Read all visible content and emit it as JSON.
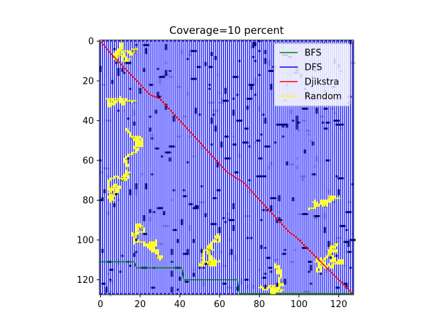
{
  "chart_data": {
    "type": "heatmap",
    "title": "Coverage=10 percent",
    "xlabel": "",
    "ylabel": "",
    "grid_size": 128,
    "xlim": [
      0,
      128
    ],
    "ylim": [
      128,
      0
    ],
    "x_ticks": [
      0,
      20,
      40,
      60,
      80,
      100,
      120
    ],
    "y_ticks": [
      0,
      20,
      40,
      60,
      80,
      100,
      120
    ],
    "obstacle_coverage_percent": 10,
    "legend_position": "top-right",
    "series": [
      {
        "name": "BFS",
        "color": "#008000",
        "points": [
          [
            0,
            111
          ],
          [
            17,
            111
          ],
          [
            18,
            114
          ],
          [
            41,
            114
          ],
          [
            42,
            120
          ],
          [
            69,
            120
          ],
          [
            70,
            127
          ],
          [
            127,
            127
          ]
        ]
      },
      {
        "name": "DFS",
        "color": "#0000ff",
        "style": "serpentine",
        "x_range": [
          0,
          127
        ],
        "y_range": [
          0,
          127
        ],
        "column_step": 1
      },
      {
        "name": "Djikstra",
        "color": "#ff0000",
        "points": [
          [
            0,
            0
          ],
          [
            5,
            6
          ],
          [
            25,
            27
          ],
          [
            30,
            29
          ],
          [
            62,
            64
          ],
          [
            64,
            66
          ],
          [
            67,
            68
          ],
          [
            72,
            71
          ],
          [
            95,
            96
          ],
          [
            98,
            98
          ],
          [
            127,
            127
          ]
        ]
      },
      {
        "name": "Random",
        "color": "#ffff00",
        "style": "random-walk",
        "clusters": [
          {
            "center": [
              10,
              5
            ],
            "size": 120
          },
          {
            "center": [
              5,
              80
            ],
            "size": 140
          },
          {
            "center": [
              12,
              60
            ],
            "size": 120
          },
          {
            "center": [
              30,
              108
            ],
            "size": 180
          },
          {
            "center": [
              60,
              110
            ],
            "size": 160
          },
          {
            "center": [
              90,
              115
            ],
            "size": 140
          },
          {
            "center": [
              115,
              105
            ],
            "size": 160
          },
          {
            "center": [
              105,
              85
            ],
            "size": 120
          },
          {
            "center": [
              18,
              30
            ],
            "size": 70
          }
        ]
      }
    ]
  }
}
